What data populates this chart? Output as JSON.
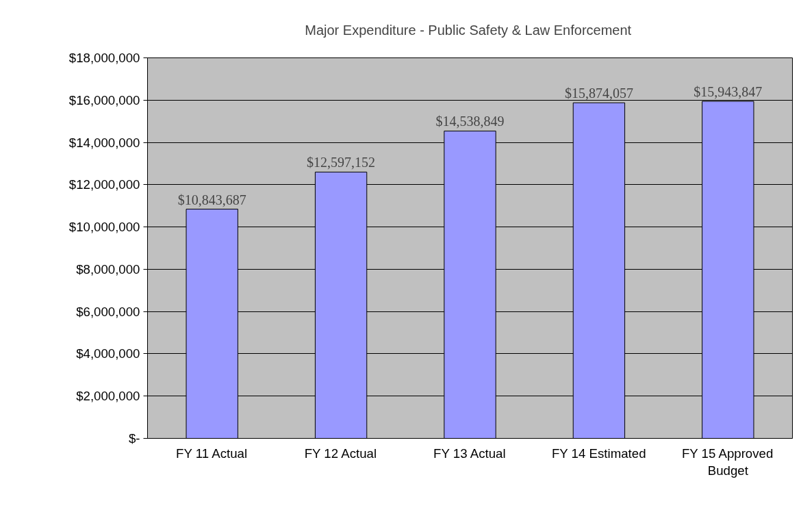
{
  "chart_data": {
    "type": "bar",
    "title": "Major Expenditure  - Public Safety & Law Enforcement",
    "categories": [
      "FY 11 Actual",
      "FY 12 Actual",
      "FY 13 Actual",
      "FY 14 Estimated",
      "FY 15 Approved Budget"
    ],
    "values": [
      10843687,
      12597152,
      14538849,
      15874057,
      15943847
    ],
    "color": "#9999ff",
    "value_labels": [
      "$10,843,687",
      "$12,597,152",
      "$14,538,849",
      "$15,874,057",
      "$15,943,847"
    ],
    "ylim": [
      0,
      18000000
    ],
    "yticks": [
      {
        "value": 0,
        "label": "$-"
      },
      {
        "value": 2000000,
        "label": "$2,000,000"
      },
      {
        "value": 4000000,
        "label": "$4,000,000"
      },
      {
        "value": 6000000,
        "label": "$6,000,000"
      },
      {
        "value": 8000000,
        "label": "$8,000,000"
      },
      {
        "value": 10000000,
        "label": "$10,000,000"
      },
      {
        "value": 12000000,
        "label": "$12,000,000"
      },
      {
        "value": 14000000,
        "label": "$14,000,000"
      },
      {
        "value": 16000000,
        "label": "$16,000,000"
      },
      {
        "value": 18000000,
        "label": "$18,000,000"
      }
    ],
    "grid": "y"
  }
}
